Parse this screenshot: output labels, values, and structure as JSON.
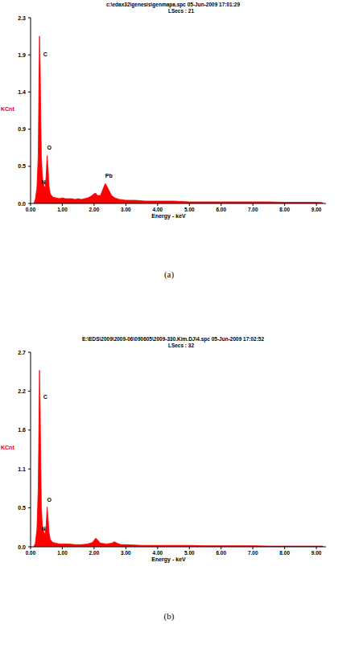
{
  "chart_data": [
    {
      "type": "area",
      "title": "c:\\edax32\\genesis\\genmapa.spc  05-Jun-2009 17:01:29",
      "subtitle": "LSecs : 21",
      "x_label": "Energy - keV",
      "y_label": "KCnt",
      "caption": "(a)",
      "x": [
        0.1,
        0.15,
        0.2,
        0.24,
        0.26,
        0.28,
        0.3,
        0.32,
        0.34,
        0.37,
        0.39,
        0.42,
        0.46,
        0.49,
        0.52,
        0.55,
        0.58,
        0.62,
        0.7,
        0.8,
        0.9,
        1.0,
        1.1,
        1.2,
        1.3,
        1.4,
        1.5,
        1.6,
        1.7,
        1.8,
        1.9,
        2.0,
        2.05,
        2.1,
        2.2,
        2.3,
        2.35,
        2.4,
        2.45,
        2.55,
        2.65,
        2.8,
        3.0,
        3.3,
        3.6,
        4.0,
        4.5,
        5.0,
        5.5,
        6.0,
        6.5,
        7.0,
        7.5,
        8.0,
        8.5,
        9.0,
        9.2
      ],
      "series": [
        {
          "name": "genmapa",
          "color": "#ff0000",
          "values": [
            0.0,
            0.05,
            0.2,
            0.6,
            1.4,
            2.1,
            1.8,
            1.1,
            0.6,
            0.35,
            0.28,
            0.22,
            0.2,
            0.35,
            0.6,
            0.45,
            0.22,
            0.12,
            0.08,
            0.07,
            0.06,
            0.07,
            0.06,
            0.06,
            0.06,
            0.05,
            0.06,
            0.05,
            0.06,
            0.07,
            0.09,
            0.12,
            0.13,
            0.1,
            0.1,
            0.2,
            0.25,
            0.22,
            0.18,
            0.1,
            0.07,
            0.05,
            0.04,
            0.04,
            0.03,
            0.03,
            0.03,
            0.02,
            0.02,
            0.02,
            0.02,
            0.02,
            0.02,
            0.015,
            0.015,
            0.015,
            0.01
          ]
        }
      ],
      "xlim": [
        0,
        9.3
      ],
      "xticks": [
        {
          "value": 0,
          "label": "0.00"
        },
        {
          "value": 1,
          "label": "1.00"
        },
        {
          "value": 2,
          "label": "2.00"
        },
        {
          "value": 3,
          "label": "3.00"
        },
        {
          "value": 4,
          "label": "4.00"
        },
        {
          "value": 5,
          "label": "5.00"
        },
        {
          "value": 6,
          "label": "6.00"
        },
        {
          "value": 7,
          "label": "7.00"
        },
        {
          "value": 8,
          "label": "8.00"
        },
        {
          "value": 9,
          "label": "9.00"
        }
      ],
      "ylim": [
        0,
        2.33
      ],
      "yticks": [
        {
          "value": 0,
          "label": "0.0"
        },
        {
          "value": 0.466,
          "label": "0.5"
        },
        {
          "value": 0.932,
          "label": "0.9"
        },
        {
          "value": 1.398,
          "label": "1.4"
        },
        {
          "value": 1.864,
          "label": "1.9"
        },
        {
          "value": 2.33,
          "label": "2.3"
        }
      ],
      "annotations": [
        {
          "text": "C",
          "x": 0.4,
          "y": 1.85
        },
        {
          "text": "O",
          "x": 0.52,
          "y": 0.68
        },
        {
          "text": "N",
          "x": 0.34,
          "y": 0.24
        },
        {
          "text": "Pb",
          "x": 2.35,
          "y": 0.32
        }
      ]
    },
    {
      "type": "area",
      "title": "E:\\EDS\\2009\\2009-06\\090605\\2009-330.Kim.DJ\\4.spc  05-Jun-2009 17:02:52",
      "subtitle": "LSecs : 32",
      "x_label": "Energy - keV",
      "y_label": "KCnt",
      "caption": "(b)",
      "x": [
        0.1,
        0.15,
        0.2,
        0.24,
        0.26,
        0.28,
        0.3,
        0.32,
        0.34,
        0.37,
        0.39,
        0.42,
        0.46,
        0.49,
        0.52,
        0.55,
        0.58,
        0.62,
        0.7,
        0.8,
        0.9,
        1.0,
        1.2,
        1.4,
        1.6,
        1.8,
        1.95,
        2.05,
        2.1,
        2.2,
        2.4,
        2.55,
        2.65,
        2.72,
        2.85,
        3.0,
        3.5,
        4.0,
        4.5,
        5.0,
        5.5,
        6.0,
        6.5,
        7.0,
        7.5,
        8.0,
        8.5,
        9.0,
        9.2
      ],
      "series": [
        {
          "name": "4",
          "color": "#ff0000",
          "values": [
            0.0,
            0.05,
            0.25,
            0.8,
            1.6,
            2.45,
            2.0,
            1.2,
            0.55,
            0.3,
            0.25,
            0.2,
            0.18,
            0.3,
            0.55,
            0.4,
            0.2,
            0.1,
            0.06,
            0.05,
            0.04,
            0.04,
            0.04,
            0.03,
            0.03,
            0.04,
            0.06,
            0.12,
            0.1,
            0.05,
            0.04,
            0.05,
            0.07,
            0.05,
            0.03,
            0.03,
            0.02,
            0.02,
            0.02,
            0.02,
            0.015,
            0.015,
            0.015,
            0.015,
            0.01,
            0.01,
            0.01,
            0.01,
            0.01
          ]
        }
      ],
      "xlim": [
        0,
        9.3
      ],
      "xticks": [
        {
          "value": 0,
          "label": "0.00"
        },
        {
          "value": 1,
          "label": "1.00"
        },
        {
          "value": 2,
          "label": "2.00"
        },
        {
          "value": 3,
          "label": "3.00"
        },
        {
          "value": 4,
          "label": "4.00"
        },
        {
          "value": 5,
          "label": "5.00"
        },
        {
          "value": 6,
          "label": "6.00"
        },
        {
          "value": 7,
          "label": "7.00"
        },
        {
          "value": 8,
          "label": "8.00"
        },
        {
          "value": 9,
          "label": "9.00"
        }
      ],
      "ylim": [
        0,
        2.7
      ],
      "yticks": [
        {
          "value": 0,
          "label": "0.0"
        },
        {
          "value": 0.54,
          "label": "0.5"
        },
        {
          "value": 1.08,
          "label": "1.1"
        },
        {
          "value": 1.62,
          "label": "1.6"
        },
        {
          "value": 2.16,
          "label": "2.2"
        },
        {
          "value": 2.7,
          "label": "2.7"
        }
      ],
      "annotations": [
        {
          "text": "C",
          "x": 0.4,
          "y": 2.05
        },
        {
          "text": "O",
          "x": 0.52,
          "y": 0.62
        },
        {
          "text": "N",
          "x": 0.34,
          "y": 0.22
        }
      ]
    }
  ]
}
